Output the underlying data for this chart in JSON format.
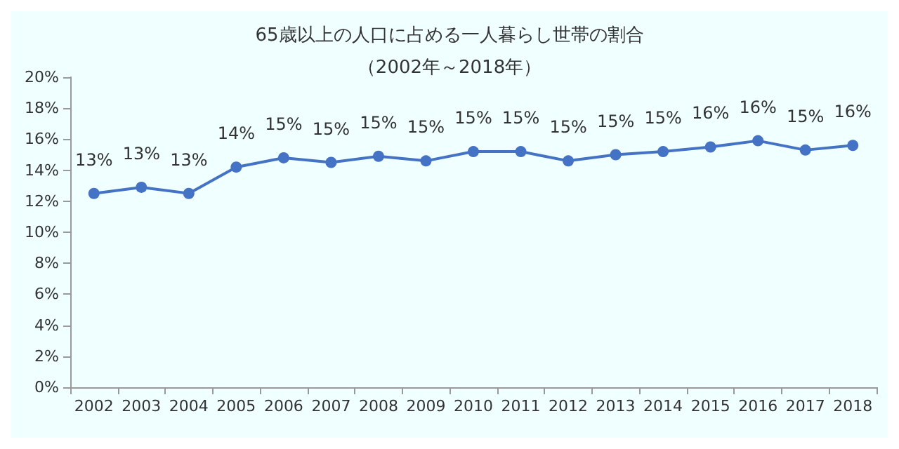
{
  "chart_data": {
    "type": "line",
    "title": "65歳以上の人口に占める一人暮らし世帯の割合",
    "subtitle": "（2002年～2018年）",
    "categories": [
      "2002",
      "2003",
      "2004",
      "2005",
      "2006",
      "2007",
      "2008",
      "2009",
      "2010",
      "2011",
      "2012",
      "2013",
      "2014",
      "2015",
      "2016",
      "2017",
      "2018"
    ],
    "series": [
      {
        "color": "#4472c4",
        "values": [
          12.5,
          12.9,
          12.5,
          14.2,
          14.8,
          14.5,
          14.9,
          14.6,
          15.2,
          15.2,
          14.6,
          15.0,
          15.2,
          15.5,
          15.9,
          15.3,
          15.6
        ],
        "value_labels": [
          "13%",
          "13%",
          "13%",
          "14%",
          "15%",
          "15%",
          "15%",
          "15%",
          "15%",
          "15%",
          "15%",
          "15%",
          "15%",
          "16%",
          "16%",
          "15%",
          "16%"
        ]
      }
    ],
    "ylim": [
      0,
      20
    ],
    "yticks": [
      {
        "value": 0,
        "label": "0%"
      },
      {
        "value": 2,
        "label": "2%"
      },
      {
        "value": 4,
        "label": "4%"
      },
      {
        "value": 6,
        "label": "6%"
      },
      {
        "value": 8,
        "label": "8%"
      },
      {
        "value": 10,
        "label": "10%"
      },
      {
        "value": 12,
        "label": "12%"
      },
      {
        "value": 14,
        "label": "14%"
      },
      {
        "value": 16,
        "label": "16%"
      },
      {
        "value": 18,
        "label": "18%"
      },
      {
        "value": 20,
        "label": "20%"
      }
    ],
    "grid": false,
    "marker": "circle",
    "line_style": "solid"
  }
}
